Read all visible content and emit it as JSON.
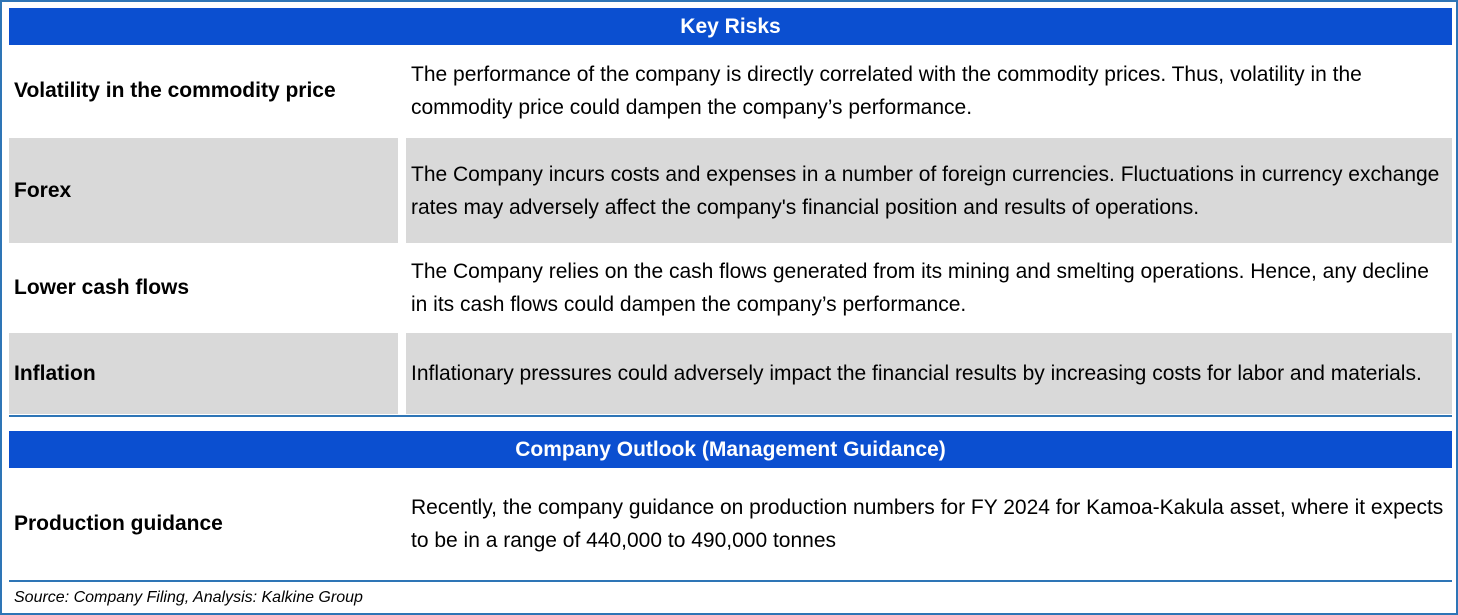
{
  "key_risks": {
    "title": "Key Risks",
    "rows": [
      {
        "label": "Volatility in the commodity price",
        "text": "The performance of the company is directly correlated with the commodity prices. Thus, volatility in the commodity price could dampen the company’s performance."
      },
      {
        "label": "Forex",
        "text": "The Company incurs costs and expenses in a number of foreign currencies. Fluctuations in currency exchange rates may adversely affect the company's financial position and results of operations."
      },
      {
        "label": "Lower cash flows",
        "text": "The Company relies on the cash flows generated from its mining and smelting operations. Hence, any decline in its cash flows could dampen the company’s performance."
      },
      {
        "label": "Inflation",
        "text": "Inflationary pressures could adversely impact the financial results by increasing costs for labor and materials."
      }
    ]
  },
  "outlook": {
    "title": "Company Outlook (Management Guidance)",
    "rows": [
      {
        "label": "Production guidance",
        "text": "Recently, the company guidance on production numbers for FY 2024 for Kamoa-Kakula asset, where it expects to be in a range of 440,000 to 490,000 tonnes"
      }
    ]
  },
  "source": "Source: Company Filing, Analysis: Kalkine Group",
  "colors": {
    "header_bg": "#0b4fd0",
    "border": "#2e75b6",
    "shade": "#d9d9d9"
  }
}
